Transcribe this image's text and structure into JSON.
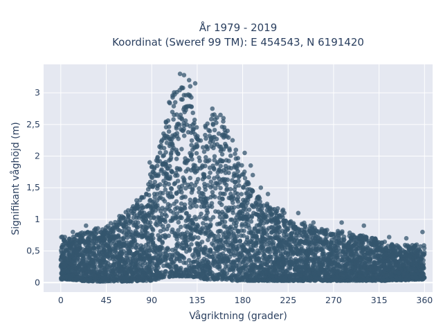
{
  "chart_data": {
    "type": "scatter",
    "title_line1": "År 1979 - 2019",
    "title_line2": "Koordinat (Sweref 99 TM): E 454543, N 6191420",
    "xlabel": "Vågriktning (grader)",
    "ylabel": "Signifikant våghöjd (m)",
    "xlim": [
      -17,
      368
    ],
    "ylim": [
      -0.15,
      3.45
    ],
    "x_ticks": [
      0,
      45,
      90,
      135,
      180,
      225,
      270,
      315,
      360
    ],
    "x_tick_labels": [
      "0",
      "45",
      "90",
      "135",
      "180",
      "225",
      "270",
      "315",
      "360"
    ],
    "y_ticks": [
      0,
      0.5,
      1,
      1.5,
      2,
      2.5,
      3
    ],
    "y_tick_labels": [
      "0",
      "0,5",
      "1",
      "1,5",
      "2",
      "2,5",
      "3"
    ],
    "grid": true,
    "marker_color": "#34566e",
    "plot_bgcolor": "#e5e8f1",
    "x": [
      0,
      10,
      20,
      30,
      40,
      45,
      50,
      60,
      70,
      80,
      85,
      90,
      95,
      100,
      105,
      110,
      112,
      115,
      118,
      120,
      122,
      125,
      128,
      130,
      135,
      140,
      145,
      150,
      155,
      160,
      165,
      170,
      175,
      180,
      185,
      190,
      200,
      210,
      220,
      225,
      230,
      240,
      250,
      260,
      270,
      280,
      290,
      300,
      310,
      315,
      320,
      330,
      340,
      350,
      360
    ],
    "y_max": [
      0.75,
      0.7,
      0.8,
      0.85,
      0.9,
      0.9,
      0.95,
      1.05,
      1.2,
      1.35,
      1.5,
      1.85,
      1.95,
      2.35,
      2.65,
      3.1,
      3.3,
      3.2,
      3.15,
      3.25,
      3.0,
      2.95,
      3.2,
      2.9,
      2.55,
      2.3,
      2.6,
      2.75,
      2.7,
      2.6,
      2.35,
      2.2,
      2.05,
      1.85,
      1.6,
      1.45,
      1.3,
      1.2,
      1.15,
      1.0,
      0.95,
      0.95,
      0.9,
      0.85,
      0.8,
      0.85,
      0.75,
      0.75,
      0.7,
      0.7,
      0.65,
      0.6,
      0.6,
      0.6,
      0.6
    ],
    "y_min": [
      0.05,
      0.05,
      0.03,
      0.02,
      0.02,
      0.02,
      0.02,
      0.02,
      0.02,
      0.03,
      0.03,
      0.03,
      0.05,
      0.08,
      0.08,
      0.1,
      0.1,
      0.1,
      0.1,
      0.1,
      0.1,
      0.1,
      0.1,
      0.08,
      0.08,
      0.06,
      0.05,
      0.05,
      0.05,
      0.04,
      0.04,
      0.03,
      0.03,
      0.03,
      0.03,
      0.03,
      0.03,
      0.03,
      0.03,
      0.03,
      0.03,
      0.03,
      0.03,
      0.03,
      0.03,
      0.03,
      0.03,
      0.03,
      0.03,
      0.03,
      0.03,
      0.04,
      0.04,
      0.05,
      0.05
    ],
    "outliers": [
      [
        118,
        3.3
      ],
      [
        122,
        3.28
      ],
      [
        127,
        3.2
      ],
      [
        133,
        3.15
      ],
      [
        150,
        2.75
      ],
      [
        158,
        2.65
      ],
      [
        161,
        2.6
      ],
      [
        165,
        2.4
      ],
      [
        170,
        2.25
      ],
      [
        182,
        2.05
      ],
      [
        188,
        1.85
      ],
      [
        190,
        1.7
      ],
      [
        198,
        1.5
      ],
      [
        205,
        1.4
      ],
      [
        220,
        1.15
      ],
      [
        235,
        1.1
      ],
      [
        250,
        0.95
      ],
      [
        278,
        0.95
      ],
      [
        300,
        0.9
      ],
      [
        325,
        0.72
      ],
      [
        342,
        0.7
      ],
      [
        358,
        0.8
      ],
      [
        58,
        1.05
      ],
      [
        25,
        0.9
      ],
      [
        12,
        0.8
      ],
      [
        4,
        0.72
      ],
      [
        75,
        1.3
      ],
      [
        80,
        1.35
      ],
      [
        88,
        1.9
      ]
    ]
  }
}
